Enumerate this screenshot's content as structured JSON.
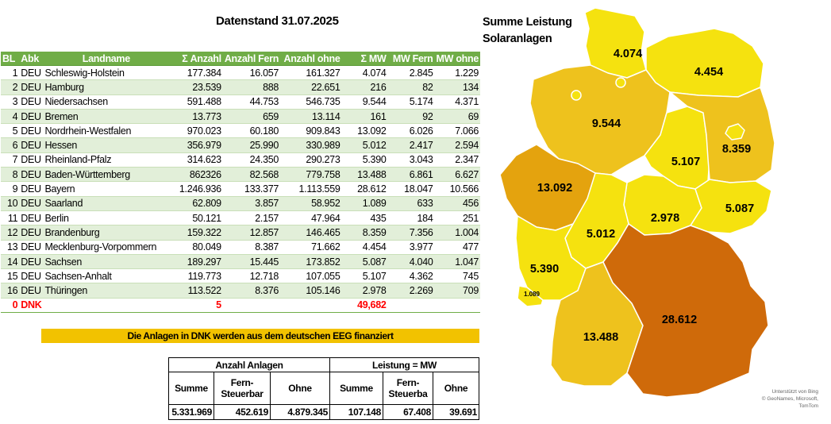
{
  "title": "Datenstand 31.07.2025",
  "table": {
    "headers": [
      "BL",
      "Abk",
      "Landname",
      "Σ Anzahl",
      "Anzahl Fern",
      "Anzahl ohne",
      "Σ MW",
      "MW Fern",
      "MW ohne"
    ],
    "rows": [
      [
        "1",
        "DEU",
        "Schleswig-Holstein",
        "177.384",
        "16.057",
        "161.327",
        "4.074",
        "2.845",
        "1.229"
      ],
      [
        "2",
        "DEU",
        "Hamburg",
        "23.539",
        "888",
        "22.651",
        "216",
        "82",
        "134"
      ],
      [
        "3",
        "DEU",
        "Niedersachsen",
        "591.488",
        "44.753",
        "546.735",
        "9.544",
        "5.174",
        "4.371"
      ],
      [
        "4",
        "DEU",
        "Bremen",
        "13.773",
        "659",
        "13.114",
        "161",
        "92",
        "69"
      ],
      [
        "5",
        "DEU",
        "Nordrhein-Westfalen",
        "970.023",
        "60.180",
        "909.843",
        "13.092",
        "6.026",
        "7.066"
      ],
      [
        "6",
        "DEU",
        "Hessen",
        "356.979",
        "25.990",
        "330.989",
        "5.012",
        "2.417",
        "2.594"
      ],
      [
        "7",
        "DEU",
        "Rheinland-Pfalz",
        "314.623",
        "24.350",
        "290.273",
        "5.390",
        "3.043",
        "2.347"
      ],
      [
        "8",
        "DEU",
        "Baden-Württemberg",
        "862326",
        "82.568",
        "779.758",
        "13.488",
        "6.861",
        "6.627"
      ],
      [
        "9",
        "DEU",
        "Bayern",
        "1.246.936",
        "133.377",
        "1.113.559",
        "28.612",
        "18.047",
        "10.566"
      ],
      [
        "10",
        "DEU",
        "Saarland",
        "62.809",
        "3.857",
        "58.952",
        "1.089",
        "633",
        "456"
      ],
      [
        "11",
        "DEU",
        "Berlin",
        "50.121",
        "2.157",
        "47.964",
        "435",
        "184",
        "251"
      ],
      [
        "12",
        "DEU",
        "Brandenburg",
        "159.322",
        "12.857",
        "146.465",
        "8.359",
        "7.356",
        "1.004"
      ],
      [
        "13",
        "DEU",
        "Mecklenburg-Vorpommern",
        "80.049",
        "8.387",
        "71.662",
        "4.454",
        "3.977",
        "477"
      ],
      [
        "14",
        "DEU",
        "Sachsen",
        "189.297",
        "15.445",
        "173.852",
        "5.087",
        "4.040",
        "1.047"
      ],
      [
        "15",
        "DEU",
        "Sachsen-Anhalt",
        "119.773",
        "12.718",
        "107.055",
        "5.107",
        "4.362",
        "745"
      ],
      [
        "16",
        "DEU",
        "Thüringen",
        "113.522",
        "8.376",
        "105.146",
        "2.978",
        "2.269",
        "709"
      ]
    ],
    "dnk_row": [
      "0",
      "DNK",
      "",
      "5",
      "",
      "",
      "49,682",
      "",
      ""
    ]
  },
  "note": "Die Anlagen in DNK werden aus dem deutschen EEG finanziert",
  "summary": {
    "group1": "Anzahl Anlagen",
    "group2": "Leistung = MW",
    "col_summe": "Summe",
    "col_fern": "Fern-Steuerbar",
    "col_fern2": "Fern-Steuerba",
    "col_ohne": "Ohne",
    "values": [
      "5.331.969",
      "452.619",
      "4.879.345",
      "107.148",
      "67.408",
      "39.691"
    ]
  },
  "map": {
    "title_line1": "Summe Leistung",
    "title_line2": "Solaranlagen",
    "labels": {
      "sh": "4.074",
      "mv": "4.454",
      "ni": "9.544",
      "st": "5.107",
      "bb": "8.359",
      "nw": "13.092",
      "th": "2.978",
      "sn": "5.087",
      "he": "5.012",
      "rp": "5.390",
      "sl": "1.089",
      "bw": "13.488",
      "by": "28.612"
    },
    "colors": {
      "light": "#f5e20f",
      "mid": "#eec21d",
      "dark": "#e4a30e",
      "darkest": "#cf6a0a"
    },
    "credit_line1": "Unterstützt von Bing",
    "credit_line2": "© GeoNames, Microsoft, TomTom"
  }
}
